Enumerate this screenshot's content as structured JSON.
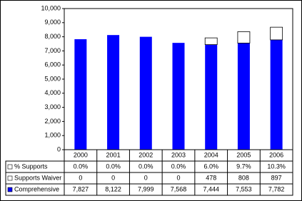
{
  "chart_data": {
    "type": "stacked-bar",
    "categories": [
      "2000",
      "2001",
      "2002",
      "2003",
      "2004",
      "2005",
      "2006"
    ],
    "series": [
      {
        "name": "% Supports",
        "color": "#ffffff",
        "values": [
          0.0,
          0.0,
          0.0,
          0.0,
          6.0,
          9.7,
          10.3
        ],
        "value_labels": [
          "0.0%",
          "0.0%",
          "0.0%",
          "0.0%",
          "6.0%",
          "9.7%",
          "10.3%"
        ]
      },
      {
        "name": "Supports Waiver",
        "color": "#ffffff",
        "values": [
          0,
          0,
          0,
          0,
          478,
          808,
          897
        ]
      },
      {
        "name": "Comprehensive",
        "color": "#0000ff",
        "values": [
          7827,
          8122,
          7999,
          7568,
          7444,
          7553,
          7782
        ],
        "value_labels": [
          "7,827",
          "8,122",
          "7,999",
          "7,568",
          "7,444",
          "7,553",
          "7,782"
        ]
      }
    ],
    "ylim": [
      0,
      10000
    ],
    "yticks": [
      0,
      {
        "value": 1000,
        "label": "1,000"
      },
      {
        "value": 2000,
        "label": "2,000"
      },
      {
        "value": 3000,
        "label": "3,000"
      },
      {
        "value": 4000,
        "label": "4,000"
      },
      {
        "value": 5000,
        "label": "5,000"
      },
      {
        "value": 6000,
        "label": "6,000"
      },
      {
        "value": 7000,
        "label": "7,000"
      },
      {
        "value": 8000,
        "label": "8,000"
      },
      {
        "value": 9000,
        "label": "9,000"
      },
      {
        "value": 10000,
        "label": "10,000"
      }
    ],
    "grid": false
  }
}
